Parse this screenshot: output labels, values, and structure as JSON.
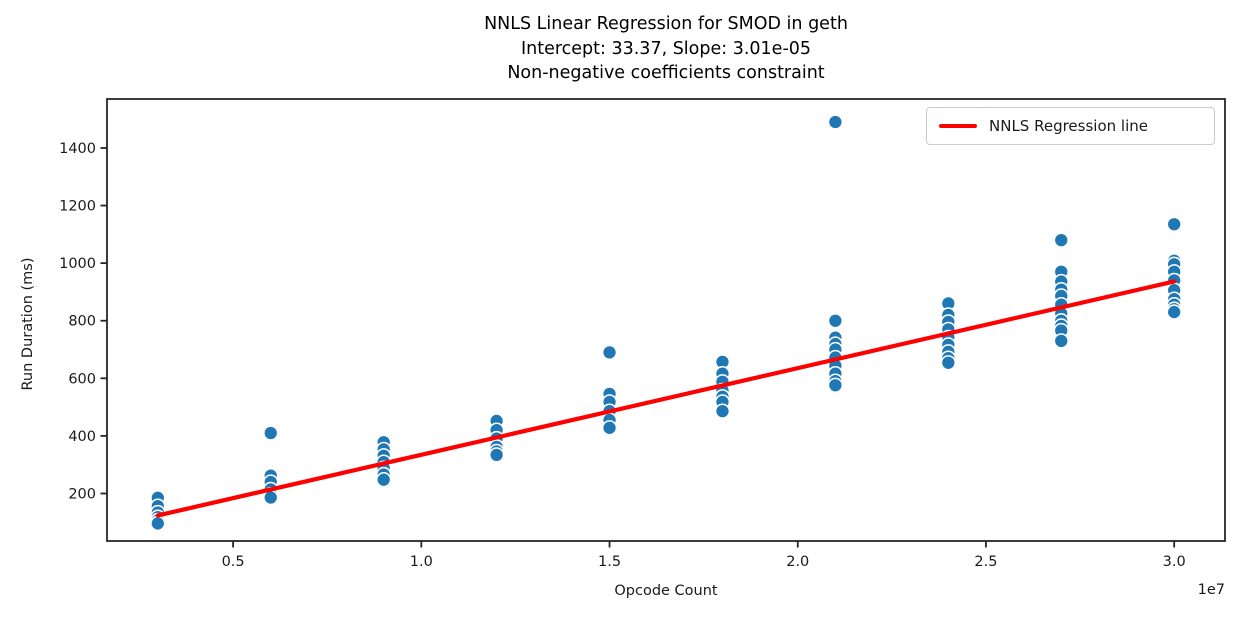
{
  "figure": {
    "title_lines": [
      "NNLS Linear Regression for SMOD in geth",
      "Intercept: 33.37, Slope: 3.01e-05",
      "Non-negative coefficients constraint"
    ]
  },
  "chart_data": {
    "type": "scatter",
    "title": "NNLS Linear Regression for SMOD in geth",
    "subtitle_lines": [
      "Intercept: 33.37, Slope: 3.01e-05",
      "Non-negative coefficients constraint"
    ],
    "xlabel": "Opcode Count",
    "ylabel": "Run Duration (ms)",
    "x_offset_label": "1e7",
    "grid": false,
    "frame_color": "#262626",
    "xlim": [
      1650000,
      31350000
    ],
    "ylim": [
      35,
      1570
    ],
    "xticks": {
      "values": [
        5000000,
        10000000,
        15000000,
        20000000,
        25000000,
        30000000
      ],
      "labels": [
        "0.5",
        "1.0",
        "1.5",
        "2.0",
        "2.5",
        "3.0"
      ]
    },
    "yticks": {
      "values": [
        200,
        400,
        600,
        800,
        1000,
        1200,
        1400
      ],
      "labels": [
        "200",
        "400",
        "600",
        "800",
        "1000",
        "1200",
        "1400"
      ]
    },
    "scatter": {
      "color": "#1f77b4",
      "edge_color": "#ffffff",
      "groups": [
        {
          "x": 3000000,
          "y": [
            185,
            156,
            134,
            118,
            106,
            96
          ]
        },
        {
          "x": 6000000,
          "y": [
            410,
            262,
            240,
            214,
            196,
            186
          ]
        },
        {
          "x": 9000000,
          "y": [
            378,
            353,
            331,
            309,
            288,
            266,
            248
          ]
        },
        {
          "x": 12000000,
          "y": [
            452,
            420,
            391,
            362,
            346,
            334
          ]
        },
        {
          "x": 15000000,
          "y": [
            690,
            546,
            518,
            486,
            455,
            428
          ]
        },
        {
          "x": 18000000,
          "y": [
            657,
            616,
            588,
            558,
            536,
            518,
            486
          ]
        },
        {
          "x": 21000000,
          "y": [
            1490,
            800,
            741,
            719,
            700,
            672,
            644,
            616,
            590,
            576
          ]
        },
        {
          "x": 24000000,
          "y": [
            860,
            820,
            796,
            770,
            742,
            716,
            692,
            670,
            654
          ]
        },
        {
          "x": 27000000,
          "y": [
            1080,
            970,
            936,
            908,
            886,
            856,
            825,
            800,
            782,
            766,
            730
          ]
        },
        {
          "x": 30000000,
          "y": [
            1135,
            1008,
            996,
            970,
            940,
            906,
            875,
            856,
            840,
            830
          ]
        }
      ]
    },
    "regression": {
      "intercept": 33.37,
      "slope": 3.01e-05,
      "x_start": 3000000,
      "x_end": 30000000,
      "color": "#ff0000"
    },
    "legend": {
      "position": "upper right",
      "entries": [
        {
          "label": "NNLS Regression line",
          "color": "#ff0000",
          "type": "line"
        }
      ]
    }
  }
}
